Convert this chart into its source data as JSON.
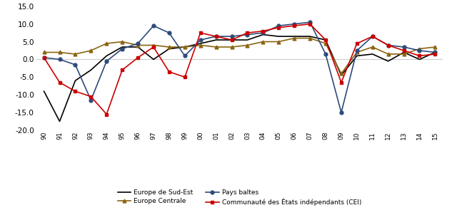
{
  "years": [
    1990,
    1991,
    1992,
    1993,
    1994,
    1995,
    1996,
    1997,
    1998,
    1999,
    2000,
    2001,
    2002,
    2003,
    2004,
    2005,
    2006,
    2007,
    2008,
    2009,
    2010,
    2011,
    2012,
    2013,
    2014,
    2015
  ],
  "europe_sud_est": [
    -9.0,
    -17.5,
    -6.0,
    -3.0,
    1.0,
    3.5,
    3.5,
    0.0,
    3.0,
    3.5,
    4.5,
    5.5,
    5.5,
    5.5,
    7.0,
    6.5,
    6.5,
    6.5,
    5.5,
    -4.5,
    1.0,
    1.5,
    -0.5,
    2.0,
    0.0,
    2.0
  ],
  "europe_centrale": [
    2.0,
    2.0,
    1.5,
    2.5,
    4.5,
    5.0,
    4.0,
    4.0,
    3.5,
    3.5,
    4.0,
    3.5,
    3.5,
    4.0,
    5.0,
    5.0,
    6.0,
    6.0,
    4.5,
    -4.0,
    2.0,
    3.5,
    1.5,
    1.5,
    3.0,
    3.5
  ],
  "pays_baltes": [
    0.5,
    0.0,
    -1.5,
    -11.5,
    -0.5,
    3.0,
    4.5,
    9.5,
    7.5,
    1.0,
    5.5,
    6.5,
    6.5,
    7.0,
    7.5,
    9.5,
    10.0,
    10.5,
    1.5,
    -15.0,
    2.5,
    6.5,
    4.0,
    3.5,
    2.5,
    2.0
  ],
  "cei": [
    0.5,
    -6.5,
    -9.0,
    -10.5,
    -15.5,
    -3.0,
    0.5,
    3.5,
    -3.5,
    -5.0,
    7.5,
    6.5,
    5.5,
    7.5,
    8.0,
    9.0,
    9.5,
    10.0,
    5.5,
    -6.5,
    4.5,
    6.5,
    4.0,
    2.5,
    1.0,
    1.5
  ],
  "colors": {
    "europe_sud_est": "#000000",
    "europe_centrale": "#8B6410",
    "pays_baltes": "#2E4B7A",
    "cei": "#CC0000"
  },
  "legend": [
    "Europe de Sud-Est",
    "Europe Centrale",
    "Pays baltes",
    "Communauté des États indépendants (CEI)"
  ],
  "ylim": [
    -20.0,
    15.0
  ],
  "yticks": [
    -20.0,
    -15.0,
    -10.0,
    -5.0,
    0.0,
    5.0,
    10.0,
    15.0
  ],
  "grid_color": "#cccccc",
  "background_color": "#ffffff"
}
